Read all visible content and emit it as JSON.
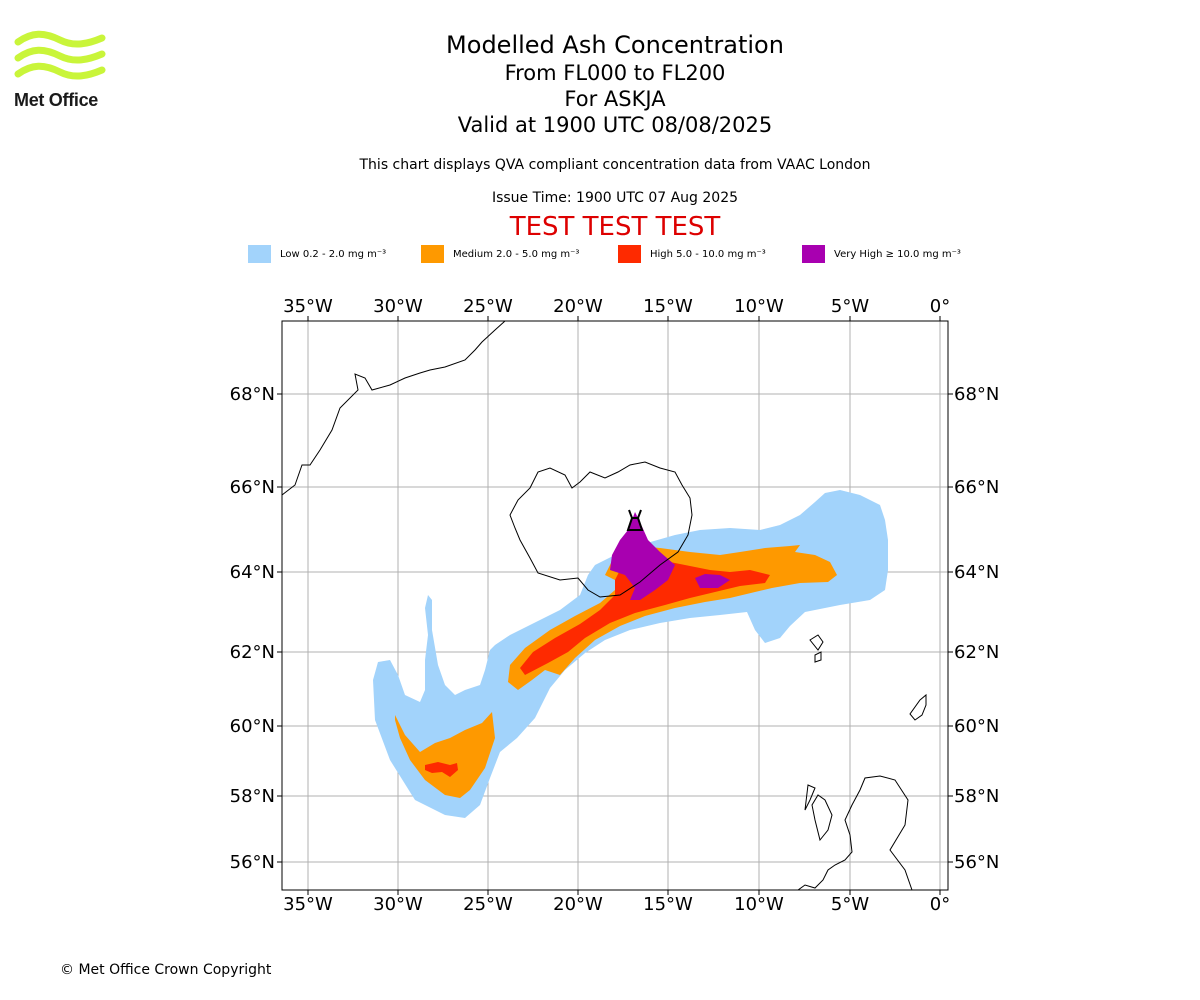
{
  "header": {
    "logo_text": "Met Office",
    "title": "Modelled Ash Concentration",
    "flight_levels": "From FL000 to FL200",
    "volcano": "For ASKJA",
    "valid_time": "Valid at 1900 UTC 08/08/2025",
    "description": "This chart displays QVA compliant concentration data from VAAC London",
    "issue_time": "Issue Time: 1900 UTC 07 Aug 2025",
    "test_banner": "TEST TEST TEST"
  },
  "legend": [
    {
      "label": "Low 0.2 - 2.0 mg m⁻³",
      "color": "#a2d3fb"
    },
    {
      "label": "Medium 2.0 - 5.0 mg m⁻³",
      "color": "#fe9900"
    },
    {
      "label": "High 5.0 - 10.0 mg m⁻³",
      "color": "#fe2a00"
    },
    {
      "label": "Very High ≥ 10.0 mg m⁻³",
      "color": "#a800b0"
    }
  ],
  "map": {
    "lon_labels": [
      "35°W",
      "30°W",
      "25°W",
      "20°W",
      "15°W",
      "10°W",
      "5°W",
      "0°"
    ],
    "lat_labels": [
      "68°N",
      "66°N",
      "64°N",
      "62°N",
      "60°N",
      "58°N",
      "56°N"
    ],
    "grid_color": "#b0b0b0"
  },
  "footer": {
    "copyright": "© Met Office Crown Copyright"
  }
}
